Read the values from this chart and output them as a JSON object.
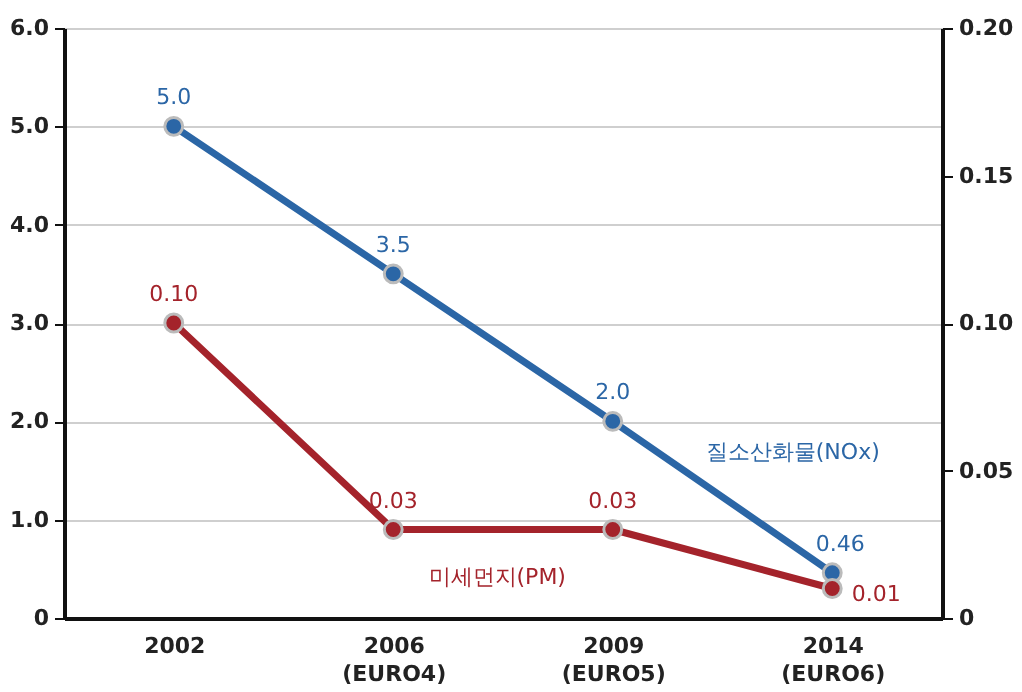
{
  "chart_data": {
    "type": "line",
    "categories": [
      "2002",
      "2006\n(EURO4)",
      "2009\n(EURO5)",
      "2014\n(EURO6)"
    ],
    "series": [
      {
        "name": "질소산화물(NOx)",
        "color": "#2b66a6",
        "values": [
          5.0,
          3.5,
          2.0,
          0.46
        ],
        "value_labels": [
          "5.0",
          "3.5",
          "2.0",
          "0.46"
        ]
      },
      {
        "name": "미세먼지(PM)",
        "color": "#a4232b",
        "values": [
          0.1,
          0.03,
          0.03,
          0.01
        ],
        "value_labels": [
          "0.10",
          "0.03",
          "0.03",
          "0.01"
        ],
        "axis": "y2"
      }
    ],
    "ylim": [
      0,
      6
    ],
    "yticks": [
      0,
      {
        "value": 1,
        "label": "1.0"
      },
      {
        "value": 2,
        "label": "2.0"
      },
      {
        "value": 3,
        "label": "3.0"
      },
      {
        "value": 4,
        "label": "4.0"
      },
      {
        "value": 5,
        "label": "5.0"
      },
      {
        "value": 6,
        "label": "6.0"
      }
    ],
    "y2lim": [
      0,
      0.2
    ],
    "y2ticks": [
      0,
      0.05,
      {
        "value": 0.1,
        "label": "0.10"
      },
      0.15,
      {
        "value": 0.2,
        "label": "0.20"
      }
    ],
    "grid": "y",
    "marker": "circle",
    "line_style": "solid"
  }
}
